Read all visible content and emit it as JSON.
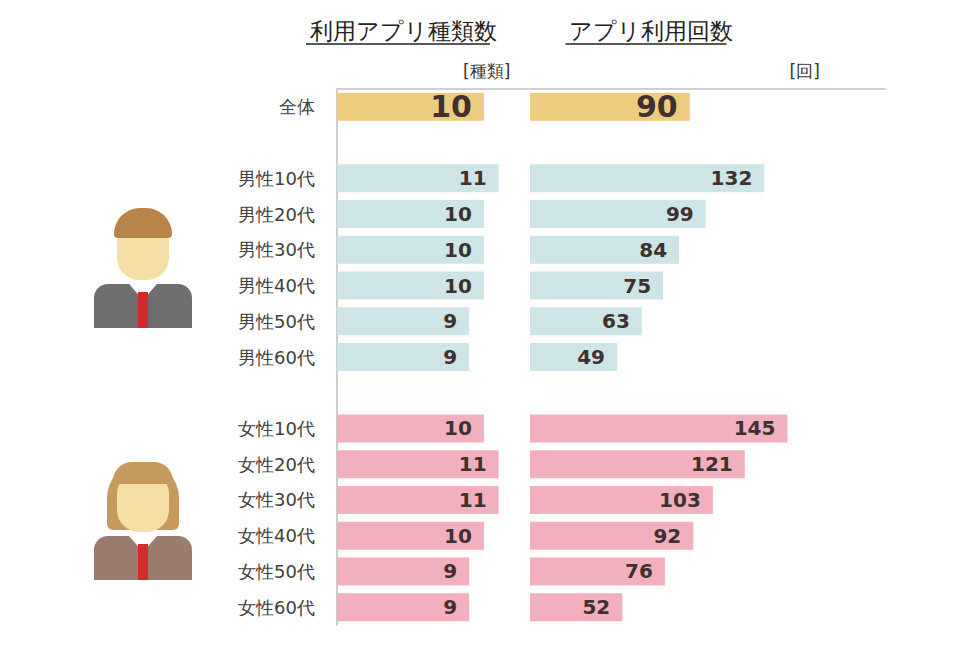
{
  "chart_data": [
    {
      "type": "bar",
      "title": "利用アプリ種類数",
      "xlabel": "[種類]",
      "orientation": "horizontal",
      "data_labels": true,
      "tick_labels": "y",
      "grid": false,
      "categories": [
        "全体",
        null,
        "男性10代",
        "男性20代",
        "男性30代",
        "男性40代",
        "男性50代",
        "男性60代",
        null,
        "女性10代",
        "女性20代",
        "女性30代",
        "女性40代",
        "女性50代",
        "女性60代"
      ],
      "values": [
        10,
        null,
        11,
        10,
        10,
        10,
        9,
        9,
        null,
        10,
        11,
        11,
        10,
        9,
        9
      ],
      "colors": [
        "#edcc80",
        null,
        "#cde5e7",
        "#cde5e7",
        "#cde5e7",
        "#cde5e7",
        "#cde5e7",
        "#cde5e7",
        null,
        "#f2afbd",
        "#f2afbd",
        "#f2afbd",
        "#f2afbd",
        "#f2afbd",
        "#f2afbd"
      ],
      "xlim": [
        0,
        13
      ]
    },
    {
      "type": "bar",
      "title": "アプリ利用回数",
      "xlabel": "[回]",
      "orientation": "horizontal",
      "data_labels": true,
      "tick_labels": false,
      "grid": false,
      "categories": [
        "全体",
        null,
        "男性10代",
        "男性20代",
        "男性30代",
        "男性40代",
        "男性50代",
        "男性60代",
        null,
        "女性10代",
        "女性20代",
        "女性30代",
        "女性40代",
        "女性50代",
        "女性60代"
      ],
      "values": [
        90,
        null,
        132,
        99,
        84,
        75,
        63,
        49,
        null,
        145,
        121,
        103,
        92,
        76,
        52
      ],
      "colors": [
        "#edcc80",
        null,
        "#cde5e7",
        "#cde5e7",
        "#cde5e7",
        "#cde5e7",
        "#cde5e7",
        "#cde5e7",
        null,
        "#f2afbd",
        "#f2afbd",
        "#f2afbd",
        "#f2afbd",
        "#f2afbd",
        "#f2afbd"
      ],
      "xlim": [
        0,
        200
      ]
    }
  ]
}
